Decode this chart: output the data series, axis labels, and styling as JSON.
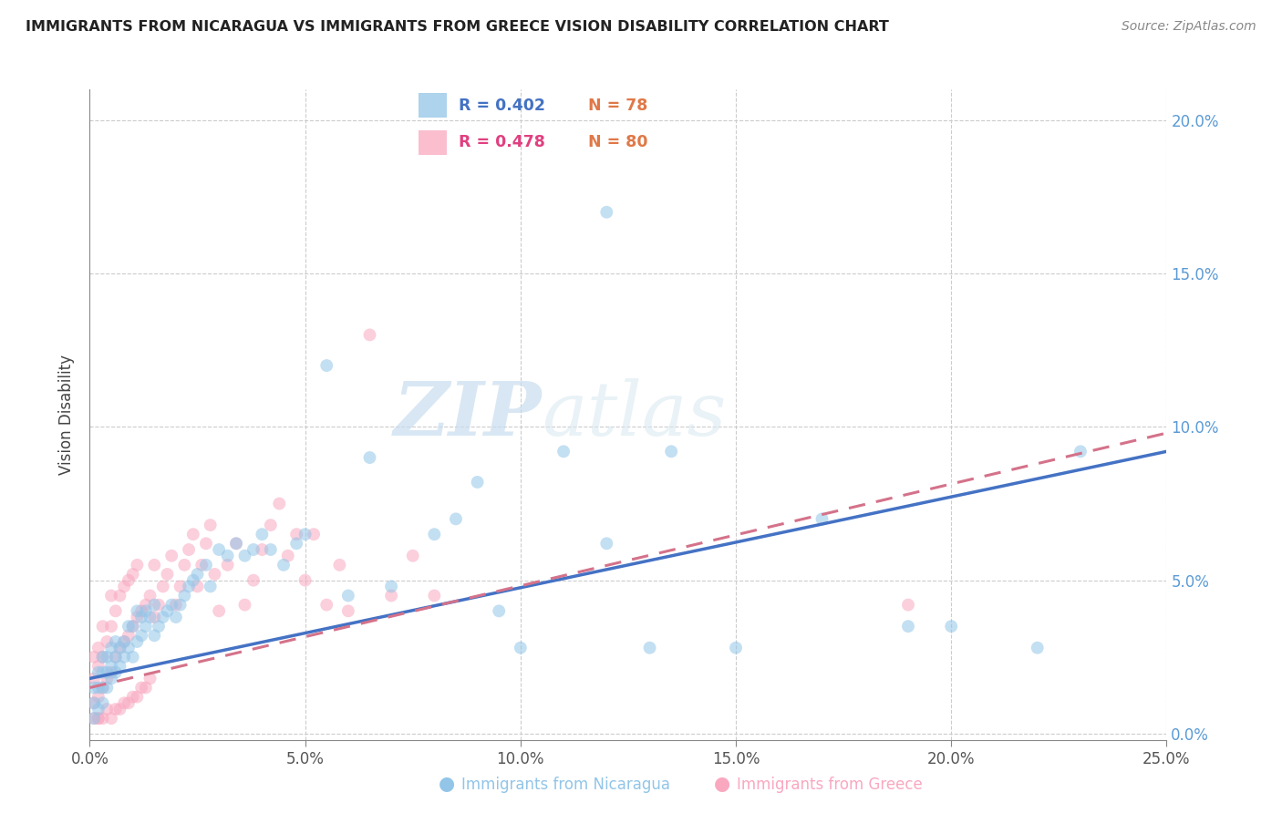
{
  "title": "IMMIGRANTS FROM NICARAGUA VS IMMIGRANTS FROM GREECE VISION DISABILITY CORRELATION CHART",
  "source": "Source: ZipAtlas.com",
  "ylabel_text": "Vision Disability",
  "xlim": [
    0.0,
    0.25
  ],
  "ylim": [
    -0.002,
    0.21
  ],
  "xticks": [
    0.0,
    0.05,
    0.1,
    0.15,
    0.2,
    0.25
  ],
  "yticks": [
    0.0,
    0.05,
    0.1,
    0.15,
    0.2
  ],
  "color_nicaragua": "#92C5E8",
  "color_greece": "#F9A8C0",
  "color_nicaragua_line": "#4472C4",
  "color_greece_line": "#D4728A",
  "legend_R_nicaragua": "R = 0.402",
  "legend_N_nicaragua": "N = 78",
  "legend_R_greece": "R = 0.478",
  "legend_N_greece": "N = 80",
  "legend_label_nicaragua": "Immigrants from Nicaragua",
  "legend_label_greece": "Immigrants from Greece",
  "watermark_zip": "ZIP",
  "watermark_atlas": "atlas",
  "nic_line_x": [
    0.0,
    0.25
  ],
  "nic_line_y": [
    0.018,
    0.092
  ],
  "gre_line_x": [
    0.0,
    0.25
  ],
  "gre_line_y": [
    0.015,
    0.098
  ],
  "nicaragua_x": [
    0.001,
    0.001,
    0.001,
    0.002,
    0.002,
    0.002,
    0.003,
    0.003,
    0.003,
    0.003,
    0.004,
    0.004,
    0.004,
    0.005,
    0.005,
    0.005,
    0.006,
    0.006,
    0.006,
    0.007,
    0.007,
    0.008,
    0.008,
    0.009,
    0.009,
    0.01,
    0.01,
    0.011,
    0.011,
    0.012,
    0.012,
    0.013,
    0.013,
    0.014,
    0.015,
    0.015,
    0.016,
    0.017,
    0.018,
    0.019,
    0.02,
    0.021,
    0.022,
    0.023,
    0.024,
    0.025,
    0.027,
    0.028,
    0.03,
    0.032,
    0.034,
    0.036,
    0.038,
    0.04,
    0.042,
    0.045,
    0.048,
    0.05,
    0.055,
    0.06,
    0.065,
    0.07,
    0.08,
    0.085,
    0.09,
    0.095,
    0.1,
    0.11,
    0.12,
    0.13,
    0.15,
    0.17,
    0.19,
    0.2,
    0.22,
    0.23,
    0.12,
    0.135
  ],
  "nicaragua_y": [
    0.005,
    0.01,
    0.015,
    0.008,
    0.015,
    0.02,
    0.01,
    0.015,
    0.02,
    0.025,
    0.015,
    0.02,
    0.025,
    0.018,
    0.022,
    0.028,
    0.02,
    0.025,
    0.03,
    0.022,
    0.028,
    0.025,
    0.03,
    0.028,
    0.035,
    0.025,
    0.035,
    0.03,
    0.04,
    0.032,
    0.038,
    0.035,
    0.04,
    0.038,
    0.032,
    0.042,
    0.035,
    0.038,
    0.04,
    0.042,
    0.038,
    0.042,
    0.045,
    0.048,
    0.05,
    0.052,
    0.055,
    0.048,
    0.06,
    0.058,
    0.062,
    0.058,
    0.06,
    0.065,
    0.06,
    0.055,
    0.062,
    0.065,
    0.12,
    0.045,
    0.09,
    0.048,
    0.065,
    0.07,
    0.082,
    0.04,
    0.028,
    0.092,
    0.062,
    0.028,
    0.028,
    0.07,
    0.035,
    0.035,
    0.028,
    0.092,
    0.17,
    0.092
  ],
  "greece_x": [
    0.001,
    0.001,
    0.001,
    0.002,
    0.002,
    0.002,
    0.003,
    0.003,
    0.003,
    0.004,
    0.004,
    0.005,
    0.005,
    0.005,
    0.006,
    0.006,
    0.007,
    0.007,
    0.008,
    0.008,
    0.009,
    0.009,
    0.01,
    0.01,
    0.011,
    0.011,
    0.012,
    0.013,
    0.014,
    0.015,
    0.015,
    0.016,
    0.017,
    0.018,
    0.019,
    0.02,
    0.021,
    0.022,
    0.023,
    0.024,
    0.025,
    0.026,
    0.027,
    0.028,
    0.029,
    0.03,
    0.032,
    0.034,
    0.036,
    0.038,
    0.04,
    0.042,
    0.044,
    0.046,
    0.048,
    0.05,
    0.052,
    0.055,
    0.058,
    0.06,
    0.065,
    0.07,
    0.075,
    0.08,
    0.001,
    0.002,
    0.003,
    0.004,
    0.005,
    0.006,
    0.007,
    0.008,
    0.009,
    0.01,
    0.011,
    0.012,
    0.013,
    0.014,
    0.19,
    0.002
  ],
  "greece_y": [
    0.01,
    0.018,
    0.025,
    0.012,
    0.022,
    0.028,
    0.015,
    0.025,
    0.035,
    0.018,
    0.03,
    0.02,
    0.035,
    0.045,
    0.025,
    0.04,
    0.028,
    0.045,
    0.03,
    0.048,
    0.032,
    0.05,
    0.035,
    0.052,
    0.038,
    0.055,
    0.04,
    0.042,
    0.045,
    0.038,
    0.055,
    0.042,
    0.048,
    0.052,
    0.058,
    0.042,
    0.048,
    0.055,
    0.06,
    0.065,
    0.048,
    0.055,
    0.062,
    0.068,
    0.052,
    0.04,
    0.055,
    0.062,
    0.042,
    0.05,
    0.06,
    0.068,
    0.075,
    0.058,
    0.065,
    0.05,
    0.065,
    0.042,
    0.055,
    0.04,
    0.13,
    0.045,
    0.058,
    0.045,
    0.005,
    0.005,
    0.005,
    0.008,
    0.005,
    0.008,
    0.008,
    0.01,
    0.01,
    0.012,
    0.012,
    0.015,
    0.015,
    0.018,
    0.042,
    0.005
  ]
}
